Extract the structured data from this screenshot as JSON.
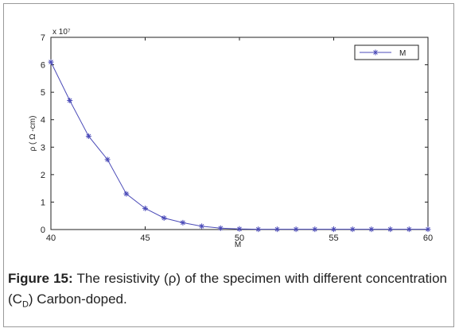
{
  "chart_data": {
    "type": "line",
    "title": "",
    "xlabel": "M",
    "ylabel": "ρ ( Ω -cm)",
    "y_multiplier": "x 10⁷",
    "xlim": [
      40,
      60
    ],
    "ylim": [
      0,
      7
    ],
    "xticks": [
      40,
      45,
      50,
      55,
      60
    ],
    "yticks": [
      0,
      1,
      2,
      3,
      4,
      5,
      6,
      7
    ],
    "grid": false,
    "legend_position": "top-right",
    "series": [
      {
        "name": "M",
        "color": "#4b4bb8",
        "marker": "asterisk",
        "x": [
          40,
          41,
          42,
          43,
          44,
          45,
          46,
          47,
          48,
          49,
          50,
          51,
          52,
          53,
          54,
          55,
          56,
          57,
          58,
          59,
          60
        ],
        "y": [
          6.1,
          4.7,
          3.4,
          2.55,
          1.3,
          0.77,
          0.42,
          0.25,
          0.12,
          0.05,
          0.02,
          0.01,
          0.01,
          0.01,
          0.01,
          0.01,
          0.01,
          0.01,
          0.01,
          0.01,
          0.01
        ]
      }
    ]
  },
  "caption": {
    "label": "Figure 15:",
    "text_before_sub": " The resistivity (ρ) of the specimen with different concentration (C",
    "subscript": "D",
    "text_after_sub": ") Carbon-doped."
  }
}
